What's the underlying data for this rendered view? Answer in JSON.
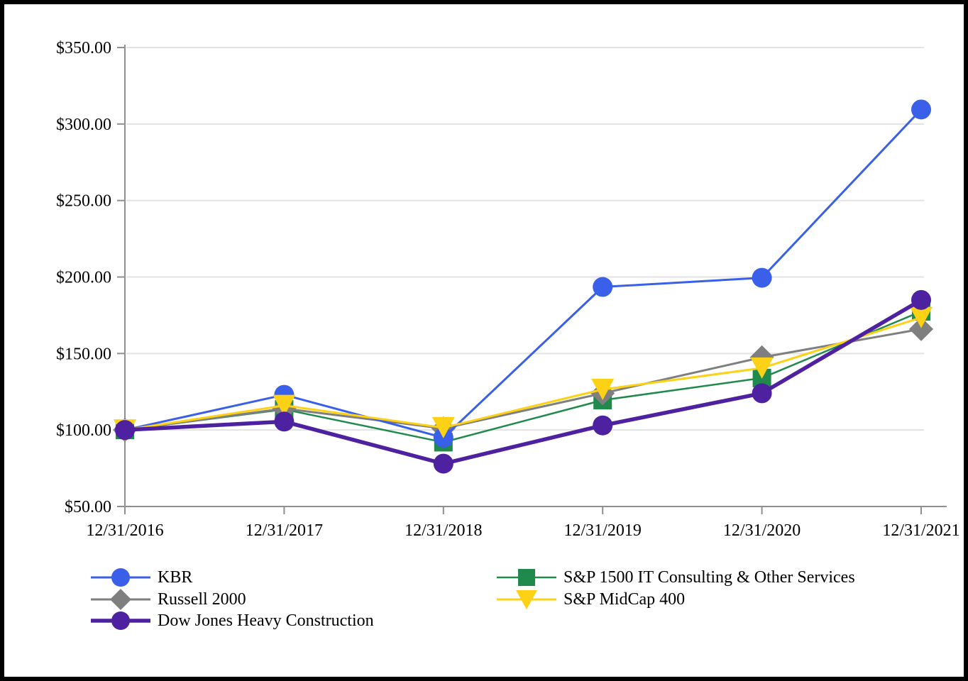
{
  "chart_data": {
    "type": "line",
    "title": "",
    "x_categories": [
      "12/31/2016",
      "12/31/2017",
      "12/31/2018",
      "12/31/2019",
      "12/31/2020",
      "12/31/2021"
    ],
    "y_tick_labels": [
      "$350.00",
      "$300.00",
      "$250.00",
      "$200.00",
      "$150.00",
      "$100.00",
      "$50.00"
    ],
    "y_tick_values": [
      350,
      300,
      250,
      200,
      150,
      100,
      50
    ],
    "ylim": [
      50,
      350
    ],
    "grid": true,
    "legend_position": "bottom",
    "axis_color": "#8f8f8f",
    "gridline_color": "#e2e2e2",
    "text_color": "#000000",
    "series": [
      {
        "id": "kbr",
        "name": "KBR",
        "color": "#3a5fe8",
        "marker": "circle",
        "line_width": 3,
        "values": [
          100,
          123,
          95,
          193.5,
          199.5,
          309.5
        ]
      },
      {
        "id": "russell-2000",
        "name": "Russell 2000",
        "color": "#7f7f7f",
        "marker": "diamond",
        "line_width": 3,
        "values": [
          100,
          114,
          101,
          124,
          147.5,
          166
        ]
      },
      {
        "id": "dow-jones-heavy-construction",
        "name": "Dow Jones Heavy Construction",
        "color": "#4d21a0",
        "marker": "circle",
        "line_width": 5.5,
        "values": [
          100,
          105.5,
          78,
          103,
          124,
          185
        ]
      },
      {
        "id": "sp-1500-it-consulting",
        "name": "S&P 1500 IT Consulting & Other Services",
        "color": "#1f8a4b",
        "marker": "square",
        "line_width": 2.5,
        "values": [
          100,
          113.5,
          92,
          119.5,
          134,
          177.5
        ]
      },
      {
        "id": "sp-midcap-400",
        "name": "S&P MidCap 400",
        "color": "#fcd116",
        "marker": "triangle-down",
        "line_width": 3,
        "values": [
          100,
          116,
          101.5,
          126.5,
          140.5,
          173.5
        ]
      }
    ],
    "draw_order": [
      3,
      1,
      0,
      4,
      2
    ],
    "legend_columns": {
      "left": [
        0,
        1,
        2
      ],
      "right": [
        3,
        4
      ]
    }
  }
}
